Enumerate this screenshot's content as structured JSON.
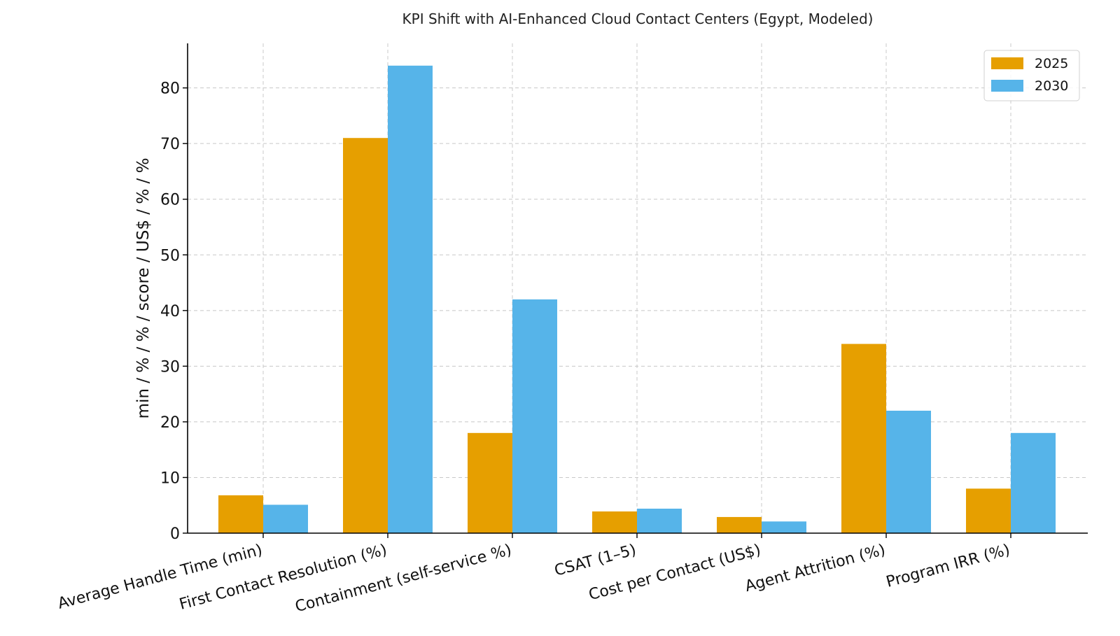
{
  "chart_data": {
    "type": "bar",
    "title": "KPI Shift with AI-Enhanced Cloud Contact Centers (Egypt, Modeled)",
    "xlabel": "",
    "ylabel": "min / % / % / score / US$ / % / %",
    "categories": [
      "Average Handle Time (min)",
      "First Contact Resolution (%)",
      "Containment (self-service %)",
      "CSAT (1–5)",
      "Cost per Contact (US$)",
      "Agent Attrition (%)",
      "Program IRR (%)"
    ],
    "series": [
      {
        "name": "2025",
        "color": "#E69F00",
        "values": [
          6.8,
          71,
          18,
          3.9,
          2.9,
          34,
          8
        ]
      },
      {
        "name": "2030",
        "color": "#56B4E9",
        "values": [
          5.1,
          84,
          42,
          4.4,
          2.1,
          22,
          18
        ]
      }
    ],
    "ylim": [
      0,
      88
    ],
    "yticks": [
      0,
      10,
      20,
      30,
      40,
      50,
      60,
      70,
      80
    ],
    "grid": true,
    "legend_position": "top-right"
  }
}
